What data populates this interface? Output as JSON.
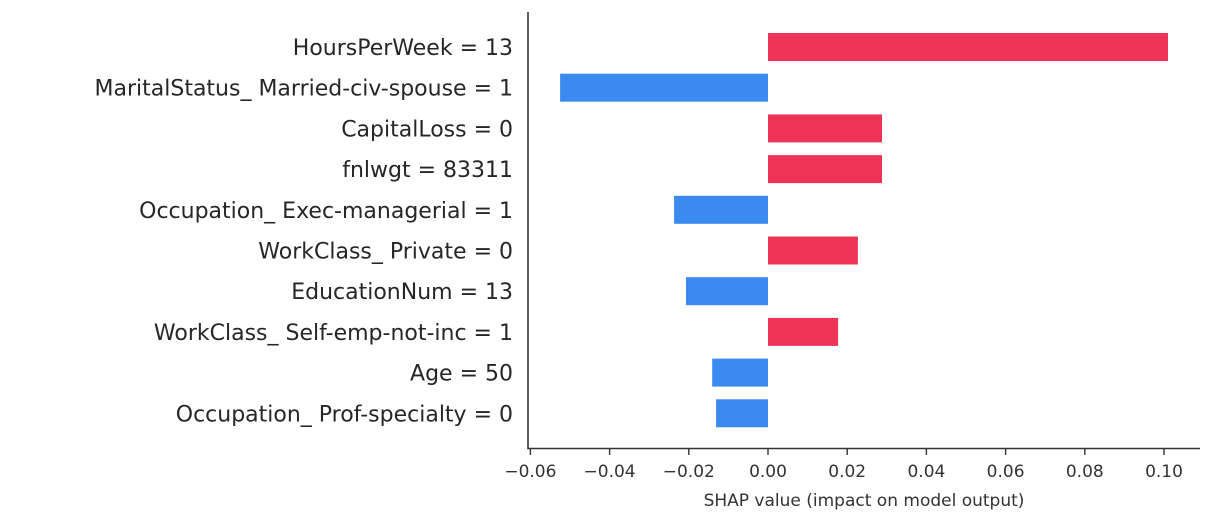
{
  "chart_data": {
    "type": "bar",
    "orientation": "horizontal",
    "title": "",
    "xlabel": "SHAP value (impact on model output)",
    "ylabel": "",
    "xlim": [
      -0.0605,
      0.1095
    ],
    "xticks": [
      -0.06,
      -0.04,
      -0.02,
      0.0,
      0.02,
      0.04,
      0.06,
      0.08,
      0.1
    ],
    "xtick_labels": [
      "−0.06",
      "−0.04",
      "−0.02",
      "0.00",
      "0.02",
      "0.04",
      "0.06",
      "0.08",
      "0.10"
    ],
    "grid": false,
    "legend": null,
    "categories": [
      "HoursPerWeek = 13",
      "MaritalStatus_ Married-civ-spouse = 1",
      "CapitalLoss = 0",
      "fnlwgt = 83311",
      "Occupation_ Exec-managerial = 1",
      "WorkClass_ Private = 0",
      "EducationNum = 13",
      "WorkClass_ Self-emp-not-inc = 1",
      "Age = 50",
      "Occupation_ Prof-specialty = 0"
    ],
    "values": [
      0.101,
      -0.0525,
      0.0288,
      0.0288,
      -0.0237,
      0.0227,
      -0.0207,
      0.0177,
      -0.0141,
      -0.0131
    ],
    "colors": {
      "positive": "#ee3456",
      "negative": "#3a8af0",
      "axis": "#333333"
    }
  }
}
